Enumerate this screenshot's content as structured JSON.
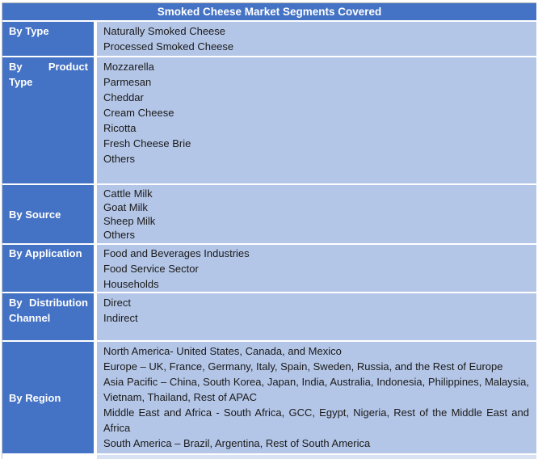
{
  "header": {
    "title": "Smoked Cheese Market Segments Covered"
  },
  "colors": {
    "header_bg": "#4472C4",
    "label_bg": "#4472C4",
    "content_bg": "#B4C6E7",
    "next_row_bg": "#D9E2F3",
    "header_text": "#ffffff",
    "content_text": "#1a1a1a"
  },
  "rows": [
    {
      "label": "By Type",
      "items": [
        "Naturally Smoked Cheese",
        "Processed Smoked Cheese"
      ]
    },
    {
      "label": "By Product Type",
      "items": [
        "Mozzarella",
        "Parmesan",
        "Cheddar",
        "Cream Cheese",
        "Ricotta",
        "Fresh Cheese Brie",
        "Others"
      ]
    },
    {
      "label": "By Source",
      "items": [
        "Cattle Milk",
        "Goat Milk",
        "Sheep Milk",
        "Others"
      ]
    },
    {
      "label": "By Application",
      "items": [
        "Food and Beverages Industries",
        "Food Service Sector",
        "Households"
      ]
    },
    {
      "label": "By Distribution Channel",
      "items": [
        "Direct",
        "Indirect"
      ]
    },
    {
      "label": "By Region",
      "items": [
        "North America- United States, Canada, and Mexico",
        "Europe – UK, France, Germany, Italy, Spain, Sweden, Russia, and the Rest of Europe",
        "Asia Pacific – China, South Korea, Japan, India, Australia, Indonesia, Philippines, Malaysia, Vietnam, Thailand, Rest of APAC",
        "Middle East and Africa - South Africa, GCC, Egypt, Nigeria, Rest of the Middle East and Africa",
        "South America – Brazil, Argentina, Rest of South America"
      ]
    }
  ]
}
